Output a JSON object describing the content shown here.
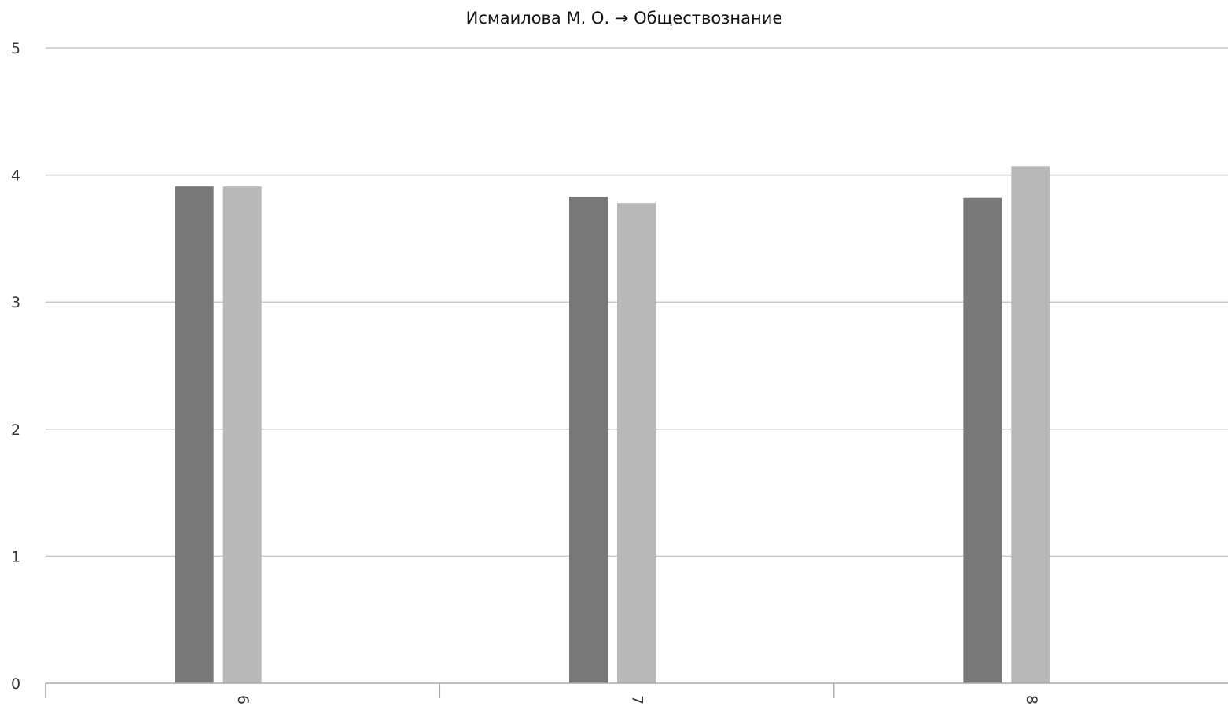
{
  "chart_data": {
    "type": "bar",
    "title": "Исмаилова М. О. → Обществознание",
    "categories": [
      "6",
      "7",
      "8"
    ],
    "series": [
      {
        "color": "#787878",
        "values": [
          3.91,
          3.83,
          3.82
        ]
      },
      {
        "color": "#b8b8b8",
        "values": [
          3.91,
          3.78,
          4.07
        ]
      }
    ],
    "ylim": [
      0,
      5
    ],
    "yticks": [
      "0",
      "1",
      "2",
      "3",
      "4",
      "5"
    ],
    "grid": true,
    "legend": "none",
    "xlabel": "",
    "ylabel": ""
  }
}
